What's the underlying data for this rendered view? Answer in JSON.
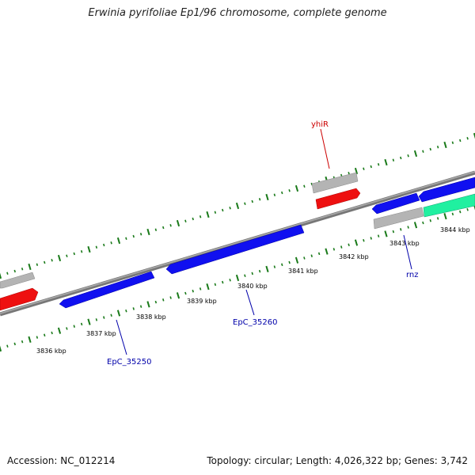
{
  "title": "Erwinia pyrifoliae Ep1/96 chromosome, complete genome",
  "footer": {
    "accession": "Accession: NC_012214",
    "summary": "Topology: circular; Length: 4,026,322 bp; Genes: 3,742"
  },
  "colors": {
    "background": "#ffffff",
    "backbone": "#8a8a8a",
    "tick": "#1a7a1a",
    "gene_forward": "#1010f0",
    "gene_rna": "#ee1010",
    "gene_cds_gray": "#b0b0b0",
    "gene_other": "#20f0a0",
    "label_blue": "#0000aa",
    "label_red": "#cc0000"
  },
  "scale_labels": [
    "3836 kbp",
    "3837 kbp",
    "3838 kbp",
    "3839 kbp",
    "3840 kbp",
    "3841 kbp",
    "3842 kbp",
    "3843 kbp",
    "3844 kbp"
  ],
  "gene_labels": [
    {
      "name": "yhiR",
      "color": "red"
    },
    {
      "name": "rnz",
      "color": "blue"
    },
    {
      "name": "EpC_35260",
      "color": "blue"
    },
    {
      "name": "EpC_35250",
      "color": "blue"
    }
  ]
}
